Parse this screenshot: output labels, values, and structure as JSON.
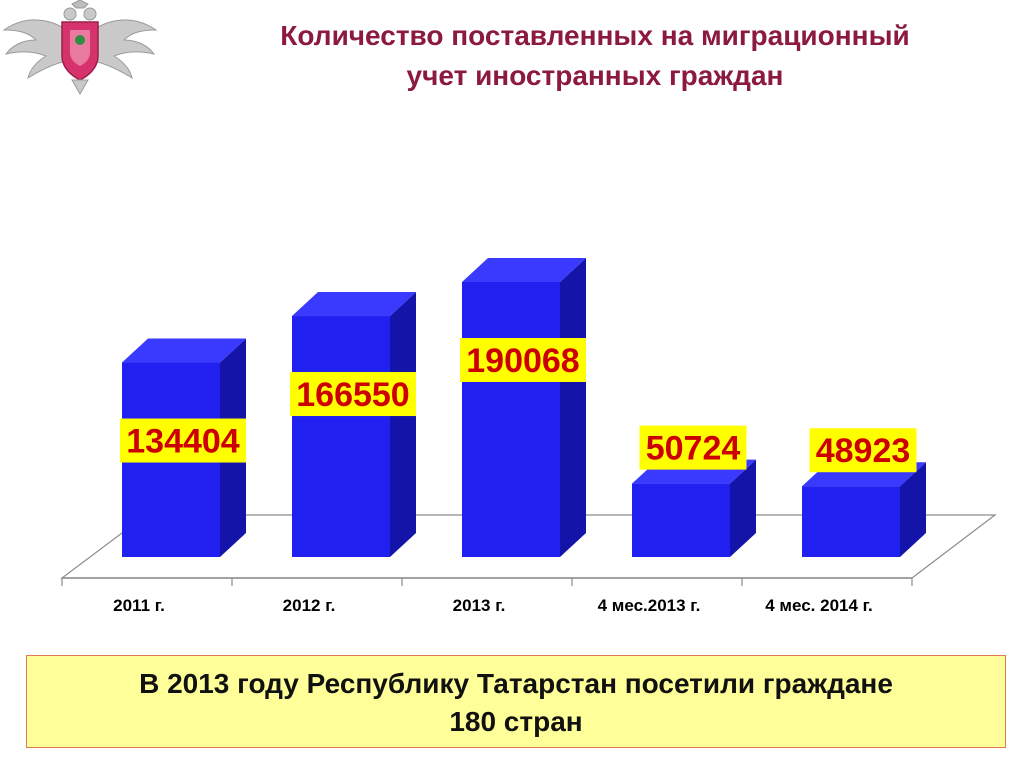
{
  "header": {
    "title_line1": "Количество поставленных на миграционный",
    "title_line2": "учет иностранных граждан"
  },
  "colors": {
    "title": "#8b1a3e",
    "bar_front": "#2020f0",
    "bar_side": "#1414a8",
    "bar_top": "#3a3aff",
    "label_bg": "#ffff00",
    "label_text": "#cc0000",
    "note_bg": "#ffff99"
  },
  "chart_data": {
    "type": "bar",
    "categories": [
      "2011 г.",
      "2012 г.",
      "2013 г.",
      "4 мес.2013 г.",
      "4 мес. 2014 г."
    ],
    "values": [
      134404,
      166550,
      190068,
      50724,
      48923
    ],
    "value_labels": [
      "134404",
      "166550",
      "190068",
      "50724",
      "48923"
    ],
    "title": "Количество поставленных на миграционный учет иностранных граждан",
    "style": "3d-column",
    "data_labels": "yellow-box",
    "grid": false,
    "legend": "none"
  },
  "footer": {
    "note_line1": "В 2013 году Республику Татарстан посетили граждане",
    "note_line2": "180 стран"
  }
}
